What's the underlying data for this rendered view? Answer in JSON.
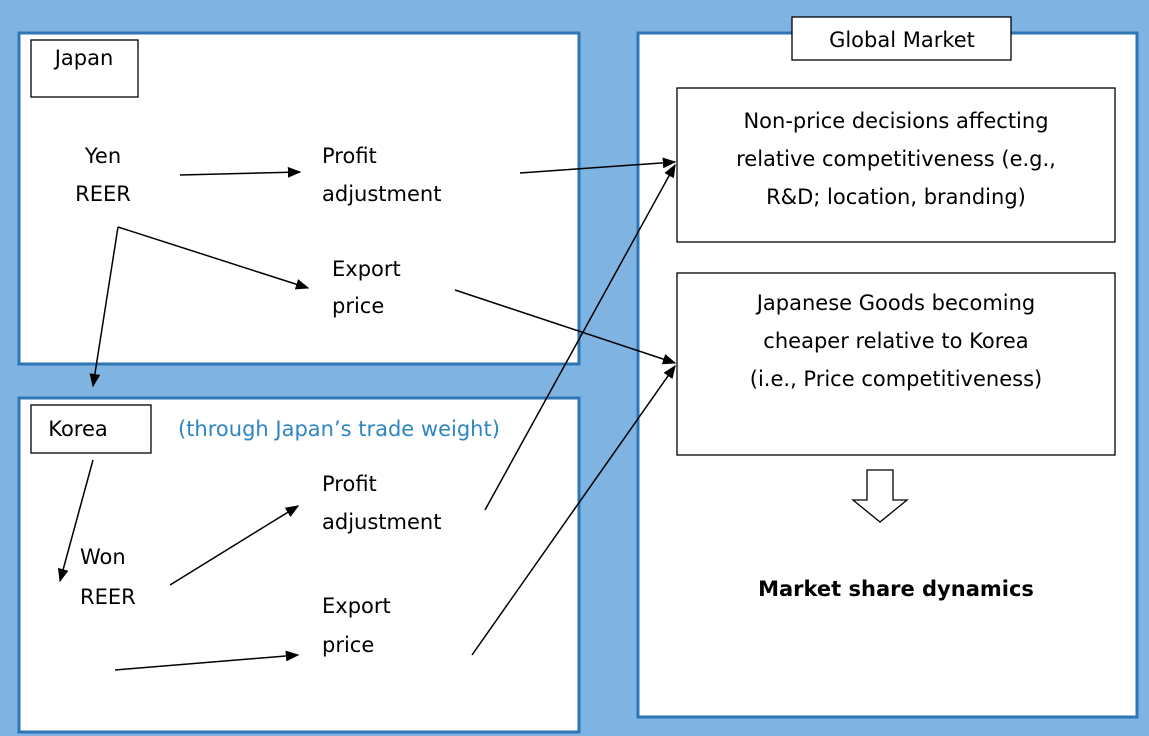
{
  "japan": {
    "label": "Japan",
    "yen_reer": [
      "Yen",
      "REER"
    ],
    "profit_adjustment": [
      "Profit",
      "adjustment"
    ],
    "export_price": [
      "Export",
      "price"
    ]
  },
  "korea": {
    "label": "Korea",
    "note": "(through Japan’s trade weight)",
    "won_reer": [
      "Won",
      "REER"
    ],
    "profit_adjustment": [
      "Profit",
      "adjustment"
    ],
    "export_price": [
      "Export",
      "price"
    ]
  },
  "global_market": {
    "label": "Global Market",
    "non_price": [
      "Non-price decisions affecting",
      "relative competitiveness (e.g.,",
      "R&D; location, branding)"
    ],
    "price": [
      "Japanese Goods becoming",
      "cheaper relative to Korea",
      "(i.e., Price competitiveness)"
    ],
    "outcome": "Market share dynamics"
  }
}
